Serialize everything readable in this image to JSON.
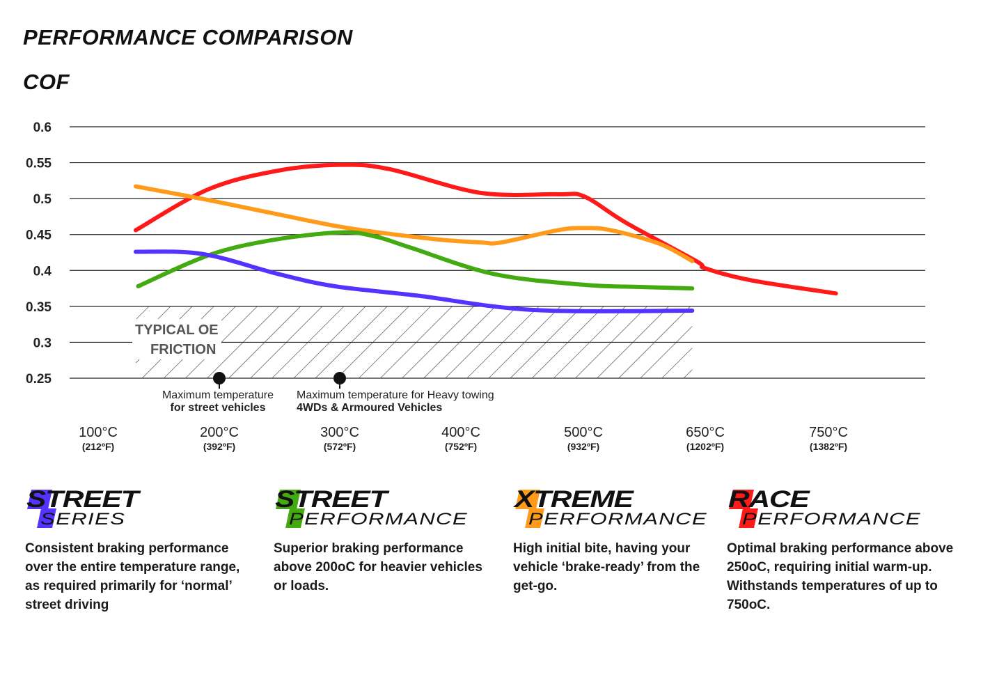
{
  "header": {
    "title": "PERFORMANCE COMPARISON",
    "subtitle": "COF"
  },
  "chart_data": {
    "type": "line",
    "title": "PERFORMANCE COMPARISON",
    "ylabel": "COF",
    "ylim": [
      0.25,
      0.6
    ],
    "yticks": [
      "0.6",
      "0.55",
      "0.5",
      "0.45",
      "0.4",
      "0.35",
      "0.3",
      "0.25"
    ],
    "ytick_values": [
      0.6,
      0.55,
      0.5,
      0.45,
      0.4,
      0.35,
      0.3,
      0.25
    ],
    "grid": "horizontal",
    "x_categories_c": [
      100,
      200,
      300,
      400,
      500,
      650,
      750
    ],
    "xtick_labels": [
      {
        "c": "100°C",
        "f": "(212ºF)"
      },
      {
        "c": "200°C",
        "f": "(392ºF)"
      },
      {
        "c": "300°C",
        "f": "(572ºF)"
      },
      {
        "c": "400°C",
        "f": "(752ºF)"
      },
      {
        "c": "500°C",
        "f": "(932ºF)"
      },
      {
        "c": "650°C",
        "f": "(1202ºF)"
      },
      {
        "c": "750°C",
        "f": "(1382ºF)"
      }
    ],
    "series": [
      {
        "color": "#ff1a1a",
        "x": [
          131,
          191,
          249,
          301,
          341,
          416,
          479,
          501,
          553,
          639,
          650,
          688,
          756
        ],
        "y": [
          0.456,
          0.513,
          0.539,
          0.547,
          0.541,
          0.508,
          0.506,
          0.503,
          0.466,
          0.413,
          0.403,
          0.386,
          0.368
        ]
      },
      {
        "color": "#ff9a1a",
        "x": [
          131,
          191,
          249,
          307,
          376,
          416,
          433,
          479,
          501,
          534,
          594,
          634
        ],
        "y": [
          0.517,
          0.498,
          0.478,
          0.459,
          0.444,
          0.439,
          0.439,
          0.456,
          0.459,
          0.456,
          0.437,
          0.413
        ]
      },
      {
        "color": "#44aa11",
        "x": [
          133,
          191,
          243,
          301,
          330,
          358,
          427,
          501,
          570,
          634
        ],
        "y": [
          0.378,
          0.421,
          0.442,
          0.453,
          0.447,
          0.432,
          0.395,
          0.38,
          0.377,
          0.375
        ]
      },
      {
        "color": "#5533ff",
        "x": [
          131,
          186,
          249,
          296,
          364,
          459,
          634
        ],
        "y": [
          0.426,
          0.423,
          0.395,
          0.378,
          0.365,
          0.345,
          0.344
        ]
      }
    ],
    "hatched_region": {
      "label_line1": "TYPICAL OE",
      "label_line2": "FRICTION",
      "x_range": [
        131,
        634
      ],
      "y_range": [
        0.25,
        0.35
      ]
    },
    "annotations": [
      {
        "x": 200,
        "y": 0.25,
        "line1": "Maximum temperature",
        "line2": "for street vehicles"
      },
      {
        "x": 300,
        "y": 0.25,
        "line1": "Maximum temperature for Heavy towing",
        "line2": "4WDs & Armoured Vehicles"
      }
    ]
  },
  "products": [
    {
      "line1": "STREET",
      "line2": "SERIES",
      "color": "#5533ff",
      "description": "Consistent braking performance over the entire temperature range, as required primarily for ‘normal’ street driving"
    },
    {
      "line1": "STREET",
      "line2": "PERFORMANCE",
      "color": "#44aa11",
      "description": "Superior braking performance above 200oC for heavier vehicles or loads."
    },
    {
      "line1": "XTREME",
      "line2": "PERFORMANCE",
      "color": "#ff9a1a",
      "description": "High initial bite, having your vehicle ‘brake-ready’ from the get-go."
    },
    {
      "line1": "RACE",
      "line2": "PERFORMANCE",
      "color": "#ff1a1a",
      "description": "Optimal braking performance above 250oC, requiring initial warm-up. Withstands temperatures of up to 750oC."
    }
  ]
}
